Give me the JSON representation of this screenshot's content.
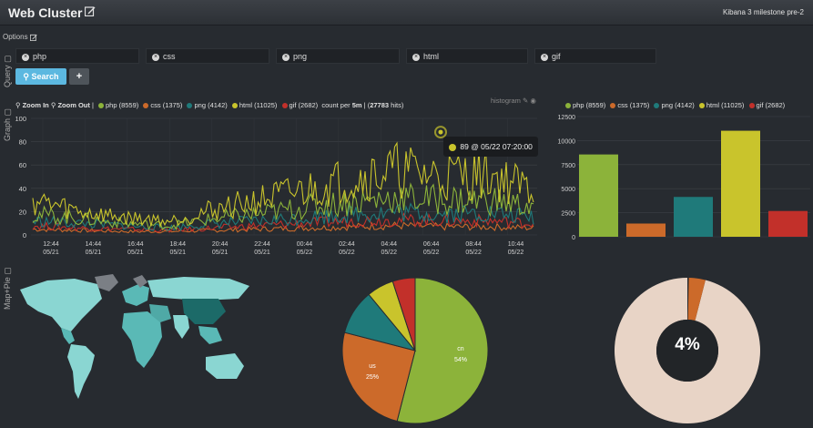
{
  "header": {
    "title": "Web Cluster",
    "version": "Kibana 3 milestone pre-2"
  },
  "options_label": "Options",
  "side_labels": {
    "query": "Query",
    "graph": "Graph",
    "map": "Map+Pie"
  },
  "query": {
    "fields": [
      "php",
      "css",
      "png",
      "html",
      "gif"
    ],
    "search_label": "Search",
    "add_label": "+"
  },
  "colors": {
    "php": "#8cb33a",
    "css": "#cc6a2a",
    "png": "#1f7a7a",
    "html": "#c9c42c",
    "gif": "#c2302a",
    "bg": "#272b30"
  },
  "histogram": {
    "panel_title": "histogram",
    "zoom_in": "Zoom In",
    "zoom_out": "Zoom Out",
    "legend": [
      "php (8559)",
      "css (1375)",
      "png (4142)",
      "html (11025)",
      "gif (2682)"
    ],
    "count_prefix": "count per",
    "interval": "5m",
    "hits": "27783",
    "hits_suffix": "hits",
    "tooltip": "89 @ 05/22 07:20:00"
  },
  "chart_data": [
    {
      "type": "line",
      "x": [
        "12:44\n05/21",
        "14:44\n05/21",
        "16:44\n05/21",
        "18:44\n05/21",
        "20:44\n05/21",
        "22:44\n05/21",
        "00:44\n05/22",
        "02:44\n05/22",
        "04:44\n05/22",
        "06:44\n05/22",
        "08:44\n05/22",
        "10:44\n05/22"
      ],
      "ylim": [
        0,
        100
      ],
      "yticks": [
        0,
        20,
        40,
        60,
        80,
        100
      ],
      "series": [
        {
          "name": "html",
          "values": [
            30,
            20,
            15,
            12,
            22,
            30,
            38,
            48,
            55,
            50,
            52,
            38
          ]
        },
        {
          "name": "php",
          "values": [
            18,
            14,
            10,
            8,
            14,
            18,
            24,
            28,
            32,
            30,
            30,
            24
          ]
        },
        {
          "name": "png",
          "values": [
            12,
            10,
            8,
            6,
            10,
            12,
            15,
            18,
            20,
            18,
            19,
            15
          ]
        },
        {
          "name": "gif",
          "values": [
            8,
            6,
            5,
            4,
            6,
            8,
            10,
            12,
            13,
            12,
            12,
            10
          ]
        },
        {
          "name": "css",
          "values": [
            5,
            4,
            3,
            3,
            4,
            5,
            6,
            7,
            8,
            7,
            7,
            6
          ]
        }
      ]
    },
    {
      "type": "bar",
      "legend": [
        "php (8559)",
        "css (1375)",
        "png (4142)",
        "html (11025)",
        "gif (2682)"
      ],
      "categories": [
        "php",
        "css",
        "png",
        "html",
        "gif"
      ],
      "values": [
        8559,
        1375,
        4142,
        11025,
        2682
      ],
      "ylim": [
        0,
        12500
      ],
      "yticks": [
        0,
        2500,
        5000,
        7500,
        10000,
        12500
      ]
    },
    {
      "type": "pie",
      "slices": [
        {
          "label": "cn",
          "value": 54,
          "pct": "54%"
        },
        {
          "label": "us",
          "value": 25,
          "pct": "25%"
        },
        {
          "label": "",
          "value": 10
        },
        {
          "label": "",
          "value": 6
        },
        {
          "label": "",
          "value": 5
        }
      ]
    },
    {
      "type": "pie",
      "slices": [
        {
          "label": "",
          "value": 96
        },
        {
          "label": "",
          "value": 4
        }
      ],
      "center_text": "4%"
    }
  ]
}
